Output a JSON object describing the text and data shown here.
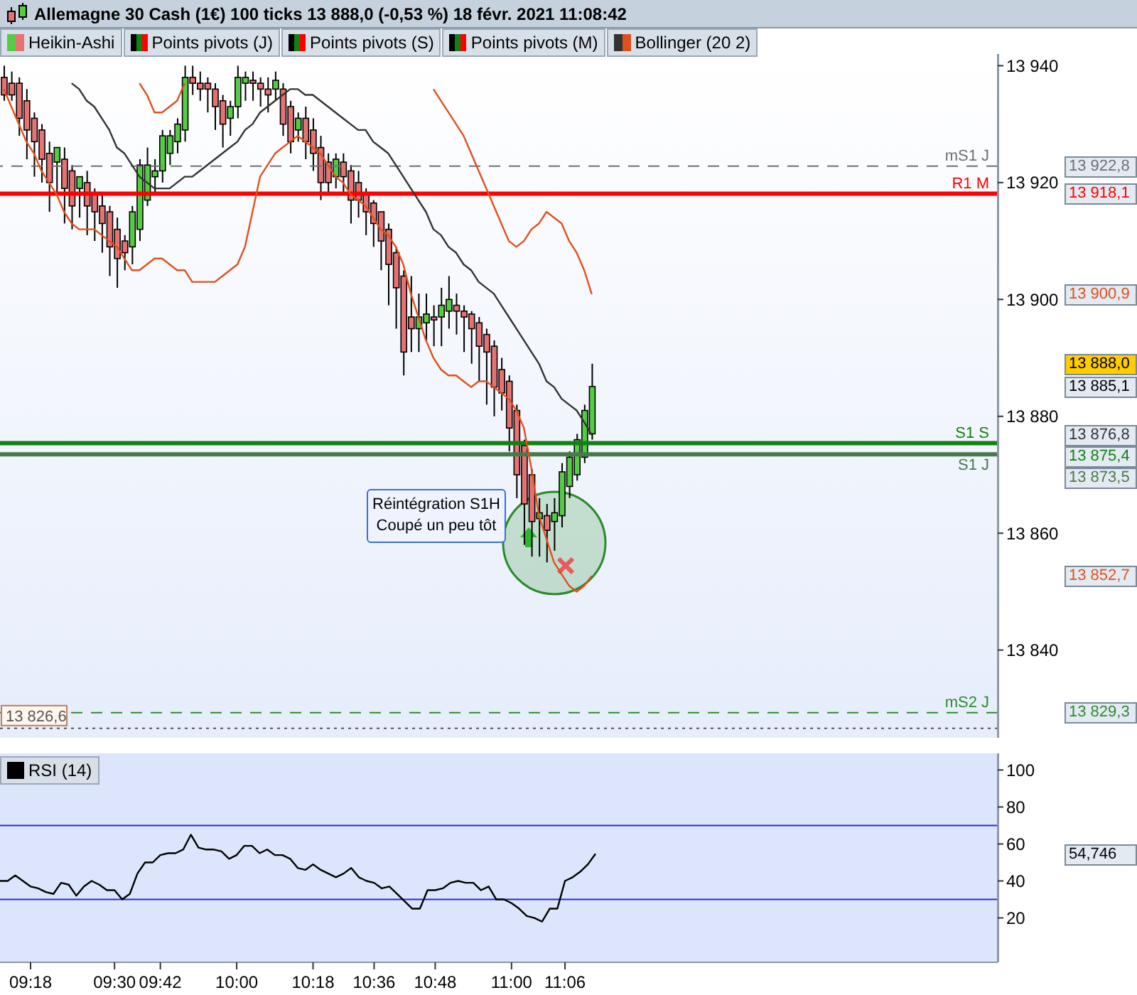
{
  "chart_data": [
    {
      "type": "candlestick",
      "title": "Allemagne 30 Cash (1€) 100 ticks 13 888,0 (-0,53 %) 18 févr. 2021 11:08:42",
      "categories": [
        null,
        null,
        null,
        null,
        null,
        null,
        null,
        null,
        null,
        null,
        null,
        null,
        null,
        null,
        null,
        null,
        null,
        null,
        null,
        null,
        null,
        null,
        null,
        null,
        null,
        null,
        null,
        null,
        null,
        null,
        null,
        null,
        null,
        null,
        null,
        null,
        null,
        null,
        null,
        null,
        null,
        null,
        null,
        null,
        null,
        null,
        null,
        null,
        null,
        null,
        null,
        null,
        null,
        null,
        null,
        null,
        null,
        null,
        null,
        null,
        null,
        null,
        null,
        null,
        null,
        null,
        null,
        null,
        null,
        null,
        null,
        null,
        null,
        null,
        null,
        null,
        null,
        null,
        null
      ],
      "series": [
        {
          "name": "Heikin-Ashi",
          "colors": [
            "#e57373",
            "#e57373",
            "#e57373",
            "#e57373",
            "#e57373",
            "#e57373",
            "#e57373",
            "#55cc44",
            "#e57373",
            "#e57373",
            "#55cc44",
            "#e57373",
            "#e57373",
            "#e57373",
            "#e57373",
            "#e57373",
            "#e57373",
            "#55cc44",
            "#55cc44",
            "#55cc44",
            "#55cc44",
            "#55cc44",
            "#55cc44",
            "#55cc44",
            "#55cc44",
            "#e57373",
            "#e57373",
            "#e57373",
            "#e57373",
            "#e57373",
            "#55cc44",
            "#55cc44",
            "#55cc44",
            "#e57373",
            "#e57373",
            "#e57373",
            "#55cc44",
            "#e57373",
            "#e57373",
            "#55cc44",
            "#e57373",
            "#e57373",
            "#e57373",
            "#e57373",
            "#55cc44",
            "#e57373",
            "#e57373",
            "#e57373",
            "#e57373",
            "#e57373",
            "#e57373",
            "#e57373",
            "#e57373",
            "#e57373",
            "#e57373",
            "#55cc44",
            "#55cc44",
            "#e57373",
            "#55cc44",
            "#55cc44",
            "#e57373",
            "#e57373",
            "#e57373",
            "#e57373",
            "#e57373",
            "#e57373",
            "#e57373",
            "#e57373",
            "#e57373",
            "#e57373",
            "#e57373",
            "#55cc44",
            "#e57373",
            "#55cc44",
            "#55cc44",
            "#55cc44",
            "#55cc44",
            "#55cc44",
            "#55cc44"
          ],
          "ohlc": [
            [
              13938,
              13940,
              13934,
              13935
            ],
            [
              13937,
              13939,
              13934,
              13935
            ],
            [
              13937,
              13938,
              13928,
              13931
            ],
            [
              13934,
              13936,
              13924,
              13929
            ],
            [
              13931,
              13932,
              13921,
              13927
            ],
            [
              13929,
              13930,
              13920,
              13924
            ],
            [
              13925,
              13927,
              13915,
              13920
            ],
            [
              13923.5,
              13926,
              13918,
              13926
            ],
            [
              13924,
              13926,
              13913,
              13919
            ],
            [
              13922,
              13923,
              13912,
              13916
            ],
            [
              13919,
              13921,
              13914,
              13921
            ],
            [
              13920,
              13922,
              13911,
              13916
            ],
            [
              13918,
              13919,
              13910,
              13915
            ],
            [
              13916,
              13918,
              13908,
              13913
            ],
            [
              13915,
              13916,
              13904,
              13909
            ],
            [
              13912,
              13914,
              13902,
              13907
            ],
            [
              13910,
              13911,
              13905,
              13908
            ],
            [
              13909,
              13916,
              13906,
              13915
            ],
            [
              13912,
              13924,
              13910,
              13923
            ],
            [
              13917,
              13926,
              13916,
              13923
            ],
            [
              13921,
              13924,
              13918,
              13922
            ],
            [
              13922,
              13929,
              13920,
              13928
            ],
            [
              13925,
              13929,
              13923,
              13928
            ],
            [
              13927,
              13931,
              13925,
              13930
            ],
            [
              13929,
              13940,
              13927,
              13938
            ],
            [
              13938,
              13940,
              13935,
              13937
            ],
            [
              13937,
              13939,
              13934,
              13936
            ],
            [
              13937,
              13938,
              13932,
              13936
            ],
            [
              13936,
              13937,
              13929,
              13933
            ],
            [
              13934,
              13935,
              13926,
              13930
            ],
            [
              13931,
              13934,
              13928,
              13933
            ],
            [
              13933,
              13940,
              13931,
              13938
            ],
            [
              13937,
              13939,
              13934,
              13938
            ],
            [
              13937.5,
              13939,
              13934,
              13937
            ],
            [
              13937,
              13938,
              13933,
              13936
            ],
            [
              13936,
              13938,
              13932,
              13935
            ],
            [
              13936,
              13939,
              13934,
              13937.5
            ],
            [
              13936,
              13937,
              13928,
              13930
            ],
            [
              13933,
              13934,
              13925,
              13927
            ],
            [
              13929,
              13932,
              13927,
              13931
            ],
            [
              13931,
              13933,
              13924,
              13927
            ],
            [
              13929,
              13931,
              13922,
              13925
            ],
            [
              13926,
              13928,
              13917,
              13920
            ],
            [
              13923.5,
              13925,
              13918,
              13920
            ],
            [
              13921,
              13925,
              13919,
              13924
            ],
            [
              13923.5,
              13925,
              13918,
              13921
            ],
            [
              13922,
              13923,
              13913,
              13917
            ],
            [
              13920,
              13922,
              13914,
              13917
            ],
            [
              13918,
              13919,
              13911,
              13915
            ],
            [
              13916.5,
              13917,
              13909,
              13913
            ],
            [
              13915,
              13915,
              13905,
              13910
            ],
            [
              13912,
              13913,
              13899,
              13906
            ],
            [
              13908,
              13909,
              13895,
              13902
            ],
            [
              13904,
              13905,
              13887,
              13891
            ],
            [
              13897,
              13904,
              13891,
              13895
            ],
            [
              13895,
              13901,
              13891,
              13897
            ],
            [
              13896,
              13901,
              13893,
              13897.5
            ],
            [
              13897,
              13899,
              13892,
              13896.5
            ],
            [
              13897,
              13902,
              13892,
              13899
            ],
            [
              13898,
              13904,
              13895,
              13900
            ],
            [
              13899,
              13901,
              13894,
              13898
            ],
            [
              13898,
              13899,
              13891,
              13897
            ],
            [
              13897.5,
              13898,
              13889,
              13895
            ],
            [
              13896,
              13897,
              13886,
              13892
            ],
            [
              13894,
              13895,
              13882,
              13891
            ],
            [
              13892,
              13893,
              13880,
              13885
            ],
            [
              13888,
              13890,
              13881,
              13884
            ],
            [
              13886,
              13887,
              13874,
              13878
            ],
            [
              13881,
              13882,
              13866,
              13870
            ],
            [
              13875,
              13876,
              13858,
              13865
            ],
            [
              13870,
              13871,
              13856,
              13862
            ],
            [
              13862.5,
              13866,
              13856,
              13863.5
            ],
            [
              13863,
              13865,
              13855,
              13860.5
            ],
            [
              13862,
              13866,
              13857,
              13863.5
            ],
            [
              13863,
              13872,
              13861,
              13870.5
            ],
            [
              13868,
              13874,
              13866,
              13873
            ],
            [
              13870,
              13877,
              13869,
              13876
            ],
            [
              13873,
              13882,
              13872,
              13881
            ],
            [
              13877,
              13889,
              13876,
              13885.1
            ]
          ]
        },
        {
          "name": "Bollinger (20 2)",
          "type": "line",
          "color": "#333333",
          "values": [
            null,
            null,
            null,
            null,
            null,
            null,
            null,
            null,
            null,
            13937,
            13936,
            13934,
            13933,
            13931,
            13929,
            13926,
            13925,
            13923,
            13921,
            13920,
            13919,
            13919,
            13919,
            13920,
            13921,
            13921,
            13922,
            13923,
            13924,
            13925,
            13926,
            13927,
            13929,
            13930,
            13932,
            13933,
            13934,
            13935,
            13936,
            13936,
            13935,
            13935,
            13934,
            13933,
            13932,
            13931,
            13930,
            13929,
            13929,
            13927,
            13926,
            13925,
            13923,
            13921,
            13919,
            13917,
            13915,
            13912,
            13911,
            13909,
            13908,
            13906,
            13905,
            13903,
            13902,
            13901,
            13899,
            13897,
            13895,
            13893,
            13891,
            13889,
            13886,
            13885,
            13883,
            13882,
            13881,
            13879,
            13876.8
          ]
        },
        {
          "type": "line",
          "color": "#e0501e",
          "values": [
            null,
            null,
            null,
            null,
            null,
            null,
            null,
            null,
            null,
            null,
            null,
            null,
            null,
            null,
            null,
            null,
            null,
            null,
            13937,
            13935,
            13932,
            13932,
            13933,
            13934,
            13937,
            null,
            null,
            null,
            null,
            null,
            null,
            null,
            null,
            null,
            null,
            null,
            null,
            null,
            null,
            null,
            null,
            null,
            null,
            null,
            null,
            null,
            null,
            null,
            null,
            null,
            null,
            null,
            null,
            null,
            null,
            null,
            null,
            13936,
            13934,
            13932,
            13930,
            13928,
            13925,
            13922,
            13919,
            13916,
            13913,
            13910,
            13909,
            13910,
            13912,
            13913,
            13915,
            13914,
            13913,
            13910,
            13908,
            13905,
            13900.9
          ]
        },
        {
          "type": "line",
          "color": "#e0501e",
          "values": [
            13936,
            13933,
            13930,
            13927,
            13925,
            13922,
            13920,
            13918,
            13915,
            13913,
            13912,
            13912,
            13912,
            13911,
            13910,
            13909,
            13907,
            13905,
            13905,
            13906,
            13907,
            13907,
            13906,
            13905,
            13905,
            13903,
            13903,
            13903,
            13903,
            13904,
            13905,
            13906,
            13909,
            13915,
            13921,
            13923,
            13925,
            13926,
            13927,
            13928,
            13927,
            13926,
            13925,
            13923,
            13921,
            13920,
            13918,
            13917,
            13916,
            13914,
            13912,
            13911,
            13909,
            13906,
            13901,
            13897,
            13893,
            13890,
            13888,
            13887,
            13887,
            13886,
            13885,
            13886,
            13886,
            13885,
            13884,
            13883,
            13881,
            13878,
            13871,
            13863,
            13859,
            13855,
            13853,
            13851,
            13850,
            13851,
            13852.7
          ]
        }
      ],
      "ylim": [
        13825,
        13942
      ],
      "yticks": [
        {
          "value": 13840,
          "label": "13 840"
        },
        {
          "value": 13860,
          "label": "13 860"
        },
        {
          "value": 13880,
          "label": "13 880"
        },
        {
          "value": 13900,
          "label": "13 900"
        },
        {
          "value": 13920,
          "label": "13 920"
        },
        {
          "value": 13940,
          "label": "13 940"
        }
      ],
      "ref_lines": [
        {
          "axis": "y",
          "value": 13922.8,
          "label": "mS1 J",
          "color": "#707070",
          "line_style": "dashed"
        },
        {
          "axis": "y",
          "value": 13918.1,
          "label": "R1 M",
          "color": "#ff0000",
          "line_style": "solid"
        },
        {
          "axis": "y",
          "value": 13875.4,
          "label": "S1 S",
          "color": "#138013",
          "line_style": "solid"
        },
        {
          "axis": "y",
          "value": 13873.5,
          "label": "S1 J",
          "color": "#4a7a4a",
          "line_style": "solid"
        },
        {
          "axis": "y",
          "value": 13829.3,
          "label": "mS2 J",
          "color": "#2e8b2e",
          "line_style": "dashed"
        },
        {
          "axis": "y",
          "value": 13826.6,
          "label": "13 826,6",
          "color": "#555555",
          "line_style": "dotted"
        }
      ],
      "annotations": [
        "Points pivots (J)",
        "Points pivots (S)",
        "Points pivots (M)",
        "Réintégration S1H\nCoupé un peu tôt",
        "13 922,8",
        "13 918,1",
        "13 875,4",
        "13 873,5",
        "13 829,3",
        "13 888,0",
        "13 885,1",
        "13 876,8",
        "13 900,9",
        "13 852,7"
      ],
      "legend": "top",
      "tick_labels": "y"
    },
    {
      "type": "line",
      "categories": [
        null,
        null,
        null,
        null,
        "09:18",
        null,
        null,
        null,
        null,
        null,
        null,
        null,
        null,
        null,
        null,
        "09:30",
        null,
        null,
        null,
        null,
        null,
        "09:42",
        null,
        null,
        null,
        null,
        null,
        null,
        null,
        null,
        null,
        "10:00",
        null,
        null,
        null,
        null,
        null,
        null,
        null,
        null,
        null,
        "10:18",
        null,
        null,
        null,
        null,
        null,
        null,
        null,
        "10:36",
        null,
        null,
        null,
        null,
        null,
        null,
        null,
        "10:48",
        null,
        null,
        null,
        null,
        null,
        null,
        null,
        null,
        null,
        "11:00",
        null,
        null,
        null,
        null,
        null,
        null,
        "11:06",
        null,
        null,
        null,
        null
      ],
      "series": [
        {
          "name": "RSI (14)",
          "color": "#000000",
          "values": [
            40,
            40,
            43,
            40,
            37,
            36,
            34,
            33,
            39,
            38,
            32,
            37,
            40,
            38,
            35,
            35,
            30,
            33,
            44,
            50,
            50,
            54,
            55,
            55,
            57,
            65,
            58,
            57,
            57,
            56,
            52,
            54,
            59,
            59,
            55,
            57,
            54,
            54,
            52,
            47,
            46,
            49,
            46,
            44,
            42,
            44,
            47,
            42,
            40,
            39,
            36,
            37,
            33,
            29,
            25,
            25,
            35,
            35,
            36,
            39,
            40,
            39,
            39,
            35,
            37,
            30,
            30,
            28,
            25,
            21,
            20,
            18,
            25,
            25,
            40,
            42,
            45,
            49,
            54.7
          ]
        }
      ],
      "annotations": [
        "54,746"
      ],
      "ylim": [
        -4,
        109
      ],
      "yticks": [
        20,
        40,
        60,
        80,
        100
      ],
      "ref_lines": [
        {
          "axis": "y",
          "value": 70,
          "color": "#2b2bd0",
          "line_style": "solid"
        },
        {
          "axis": "y",
          "value": 30,
          "color": "#2b2bd0",
          "line_style": "solid"
        }
      ],
      "legend": "top left"
    }
  ]
}
